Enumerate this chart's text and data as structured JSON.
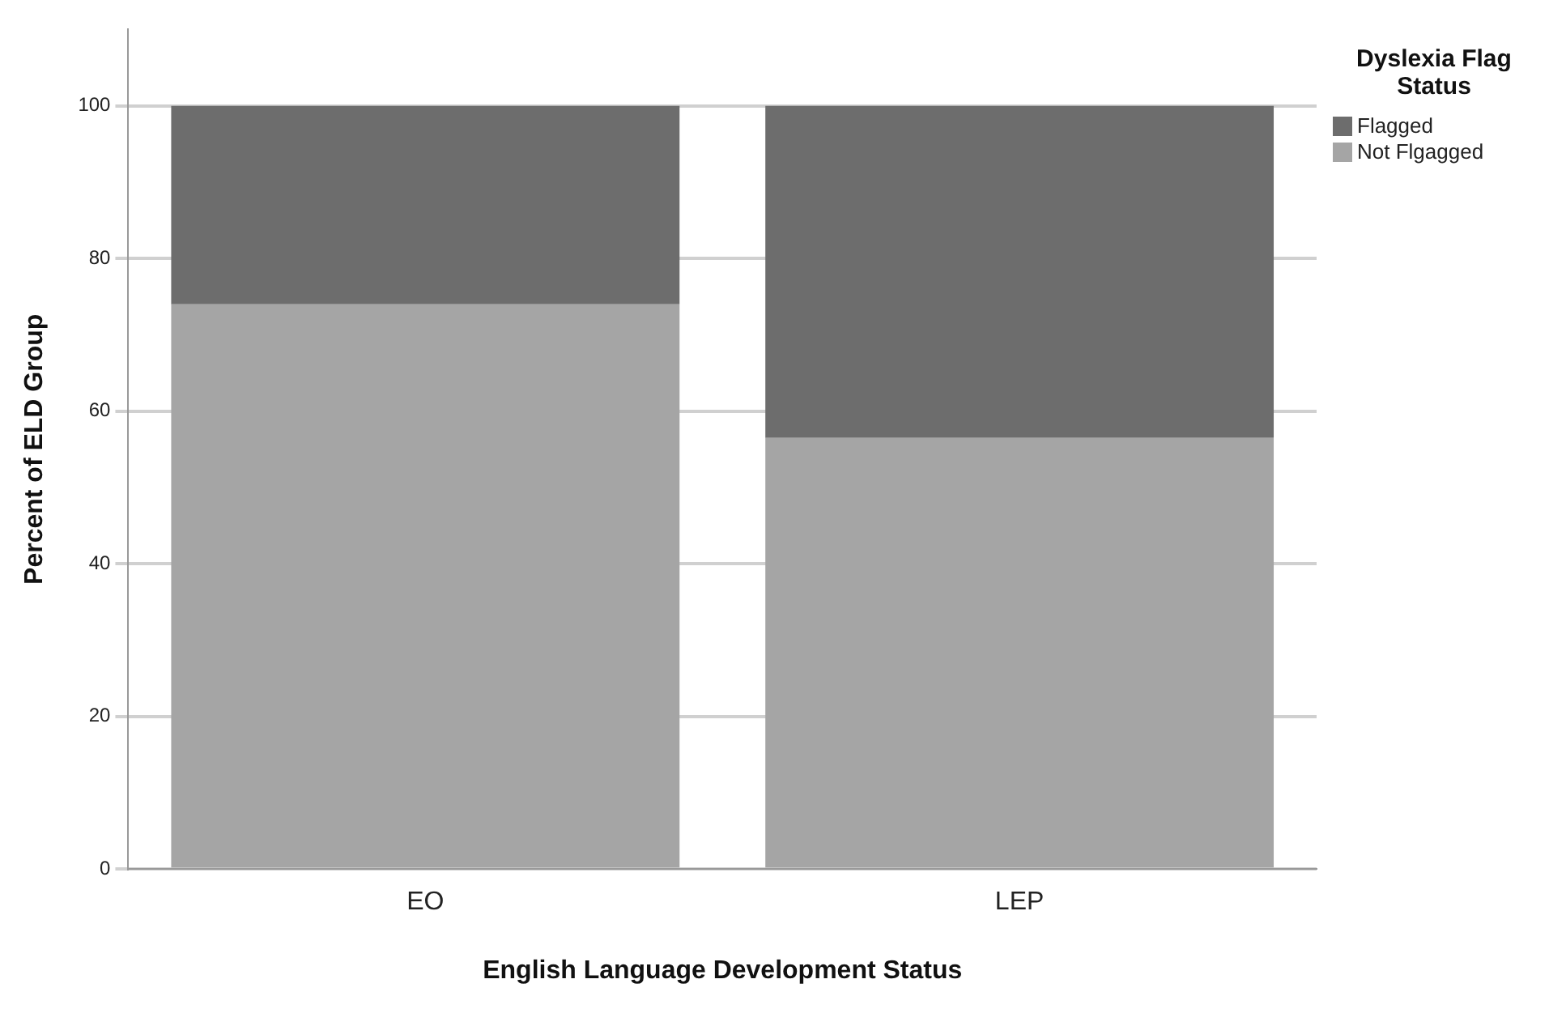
{
  "chart_data": {
    "type": "bar",
    "xlabel": "English Language Development Status",
    "ylabel": "Percent of ELD Group",
    "legend_title": "Dyslexia Flag Status",
    "categories": [
      "EO",
      "LEP"
    ],
    "series": [
      {
        "name": "Not Flgagged",
        "color": "#a5a5a5",
        "values": [
          74,
          56.5
        ]
      },
      {
        "name": "Flagged",
        "color": "#6d6d6d",
        "values": [
          26,
          43.5
        ]
      }
    ],
    "stacked": true,
    "ylim": [
      0,
      110
    ],
    "yticks": [
      0,
      20,
      40,
      60,
      80,
      100
    ],
    "grid": "y",
    "legend": "top right"
  }
}
